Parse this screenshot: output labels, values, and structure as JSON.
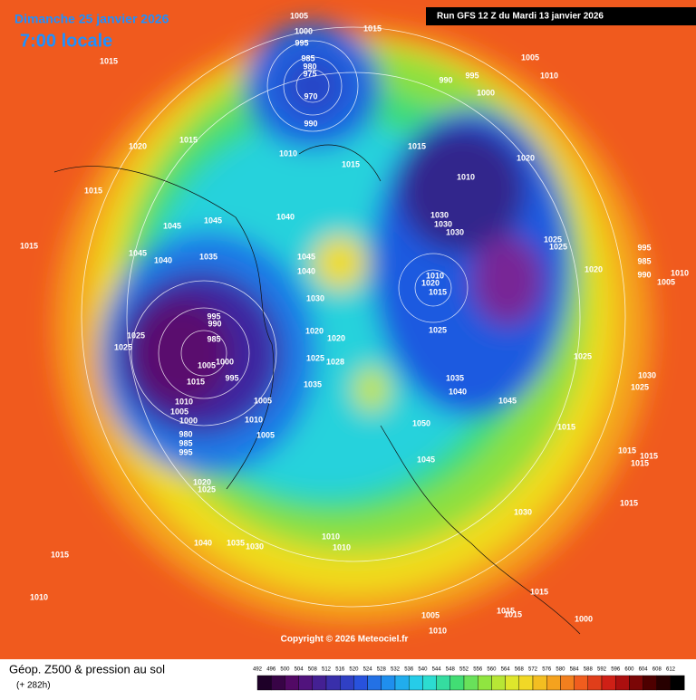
{
  "header": {
    "date": "Dimanche 25 janvier 2026",
    "time": "7:00 locale",
    "run": "Run GFS 12 Z du Mardi 13 janvier 2026"
  },
  "copyright": "Copyright © 2026 Meteociel.fr",
  "footer": {
    "title": "Géop. Z500 & pression au sol",
    "lead": "(+ 282h)"
  },
  "colorbar": [
    492,
    496,
    500,
    504,
    508,
    512,
    516,
    520,
    524,
    528,
    532,
    536,
    540,
    544,
    548,
    552,
    556,
    560,
    564,
    568,
    572,
    576,
    580,
    584,
    588,
    592,
    596,
    600,
    604,
    608,
    612
  ],
  "isobars": [
    1005,
    1000,
    995,
    985,
    980,
    975,
    970,
    990,
    1015,
    1015,
    1020,
    1015,
    1010,
    1015,
    1015,
    1015,
    1015,
    1045,
    1045,
    1040,
    1045,
    1040,
    1035,
    1045,
    1040,
    1030,
    1025,
    1025,
    995,
    990,
    985,
    1000,
    1005,
    995,
    1015,
    1010,
    1005,
    1000,
    980,
    985,
    995,
    1005,
    1010,
    1005,
    1020,
    1020,
    1025,
    1028,
    1035,
    1020,
    1025,
    1040,
    1035,
    1030,
    1015,
    1010,
    1010,
    1010,
    1005,
    1010,
    1015,
    1015,
    1015,
    1000,
    1030,
    1015,
    1045,
    1050,
    1045,
    1040,
    1035,
    1025,
    1020,
    1015,
    1010,
    1030,
    1030,
    1030,
    1010,
    1020,
    1025,
    1025,
    1020,
    1025,
    1015,
    1030,
    1025,
    1015,
    1015,
    1015,
    995,
    985,
    990,
    1010,
    1005,
    1005,
    1010,
    990,
    995,
    1000
  ]
}
